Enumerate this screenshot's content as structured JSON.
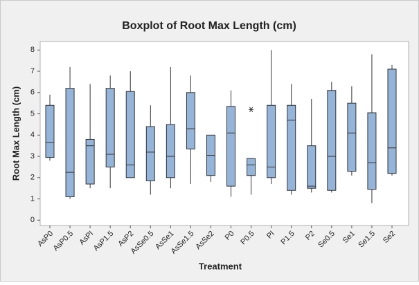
{
  "chart_data": {
    "type": "boxplot",
    "title": "Boxplot of Root Max Length (cm)",
    "x_label": "Treatment",
    "y_label": "Root Max Length (cm)",
    "categories": [
      "AsP0",
      "AsP0.5",
      "AsPI",
      "AsP1.5",
      "AsP2",
      "AsSe0.5",
      "AsSe1",
      "AsSe1.5",
      "AsSe2",
      "P0",
      "P0.5",
      "PI",
      "P1.5",
      "P2",
      "Se0.5",
      "Se1",
      "Se1.5",
      "Se2"
    ],
    "min": [
      2.8,
      1.0,
      1.5,
      1.5,
      2.0,
      1.2,
      1.5,
      1.7,
      1.8,
      1.1,
      1.2,
      1.7,
      1.2,
      1.3,
      1.3,
      2.1,
      0.8,
      2.1
    ],
    "q1": [
      2.95,
      1.1,
      1.7,
      2.5,
      2.0,
      1.85,
      2.0,
      3.35,
      2.1,
      1.6,
      2.1,
      2.0,
      1.4,
      1.5,
      1.4,
      2.3,
      1.45,
      2.2
    ],
    "median": [
      3.65,
      2.25,
      3.5,
      3.1,
      2.6,
      3.2,
      3.0,
      4.3,
      3.05,
      4.1,
      2.6,
      2.5,
      4.7,
      1.6,
      3.0,
      4.1,
      2.7,
      3.4
    ],
    "q3": [
      5.4,
      6.2,
      3.8,
      6.2,
      6.05,
      4.4,
      4.5,
      6.0,
      4.0,
      5.35,
      2.9,
      5.4,
      5.4,
      3.5,
      6.1,
      5.5,
      5.05,
      7.1
    ],
    "max": [
      5.9,
      7.2,
      6.4,
      6.8,
      7.0,
      5.4,
      7.2,
      6.8,
      4.0,
      6.1,
      2.9,
      8.0,
      6.4,
      5.7,
      6.5,
      6.3,
      7.8,
      7.3
    ],
    "outliers": [
      [],
      [],
      [],
      [],
      [],
      [],
      [],
      [],
      [],
      [],
      [
        5.2
      ],
      [],
      [],
      [],
      [],
      [],
      [],
      []
    ],
    "color": "#94b4d9",
    "ylim": [
      -0.25,
      8.4
    ],
    "yticks": [
      0,
      1,
      2,
      3,
      4,
      5,
      6,
      7,
      8
    ]
  }
}
